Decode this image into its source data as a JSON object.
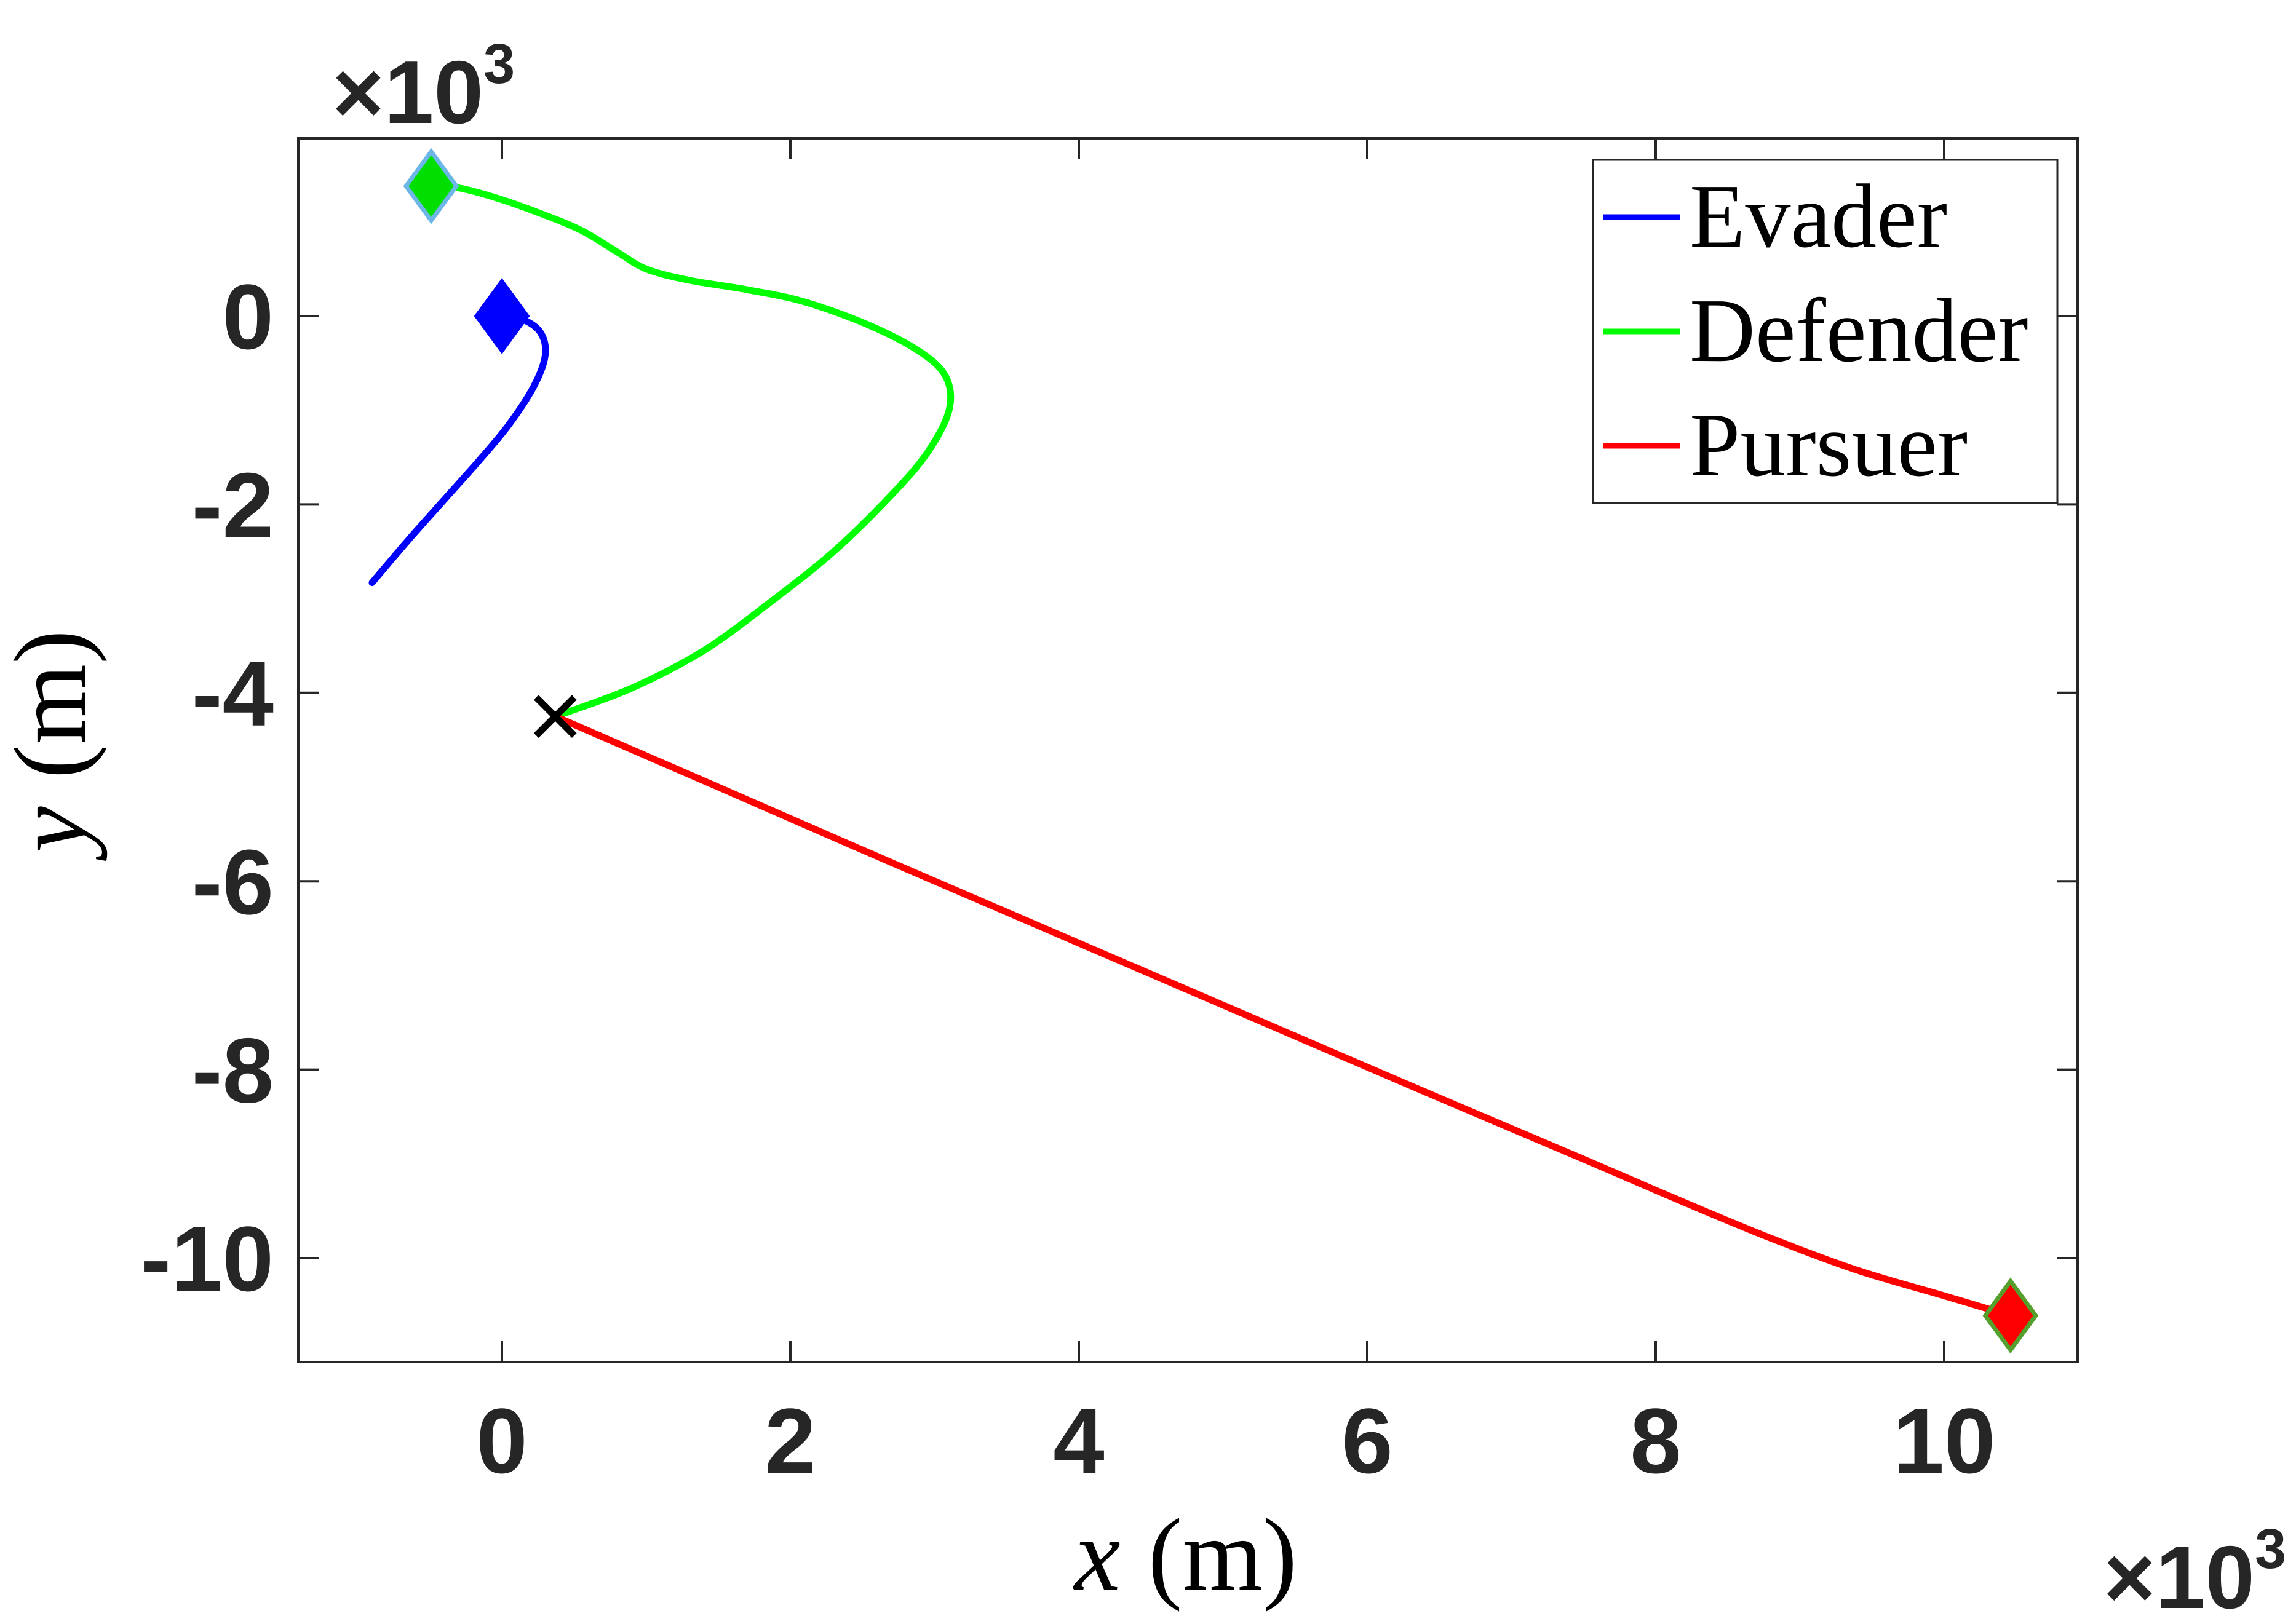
{
  "chart_data": {
    "type": "line",
    "title": "",
    "xlabel_var": "x",
    "xlabel_unit": "(m)",
    "ylabel_var": "y",
    "ylabel_unit": "(m)",
    "axis_multiplier_base": "×10",
    "axis_multiplier_exp": "3",
    "unit_scale_note": "axis values are in thousands of meters (×10³)",
    "xlim": [
      -1.41,
      10.93
    ],
    "ylim": [
      -11.1,
      1.89
    ],
    "grid": false,
    "x_ticks": {
      "values": [
        0,
        2,
        4,
        6,
        8,
        10
      ],
      "labels": [
        "0",
        "2",
        "4",
        "6",
        "8",
        "10"
      ]
    },
    "y_ticks": {
      "values": [
        0,
        -2,
        -4,
        -6,
        -8,
        -10
      ],
      "labels": [
        "0",
        "-2",
        "-4",
        "-6",
        "-8",
        "-10"
      ]
    },
    "legend": {
      "position": "northeast",
      "entries": [
        {
          "label": "Evader",
          "color": "#0000FF"
        },
        {
          "label": "Defender",
          "color": "#00FF00"
        },
        {
          "label": "Pursuer",
          "color": "#FF0000"
        }
      ]
    },
    "series": [
      {
        "name": "Evader",
        "color": "#0000FF",
        "points": [
          [
            0.0,
            0.0
          ],
          [
            0.15,
            -0.04
          ],
          [
            0.27,
            -0.18
          ],
          [
            0.3,
            -0.42
          ],
          [
            0.22,
            -0.75
          ],
          [
            0.05,
            -1.15
          ],
          [
            -0.15,
            -1.52
          ],
          [
            -0.4,
            -1.95
          ],
          [
            -0.65,
            -2.38
          ],
          [
            -0.9,
            -2.83
          ]
        ]
      },
      {
        "name": "Defender",
        "color": "#00FF00",
        "points": [
          [
            -0.49,
            1.38
          ],
          [
            -0.3,
            1.36
          ],
          [
            -0.05,
            1.26
          ],
          [
            0.25,
            1.1
          ],
          [
            0.55,
            0.91
          ],
          [
            0.8,
            0.68
          ],
          [
            1.0,
            0.5
          ],
          [
            1.3,
            0.38
          ],
          [
            1.7,
            0.28
          ],
          [
            2.1,
            0.15
          ],
          [
            2.55,
            -0.1
          ],
          [
            2.9,
            -0.38
          ],
          [
            3.08,
            -0.65
          ],
          [
            3.1,
            -1.0
          ],
          [
            2.95,
            -1.45
          ],
          [
            2.7,
            -1.9
          ],
          [
            2.3,
            -2.5
          ],
          [
            1.85,
            -3.05
          ],
          [
            1.4,
            -3.55
          ],
          [
            0.9,
            -3.95
          ],
          [
            0.37,
            -4.25
          ]
        ]
      },
      {
        "name": "Pursuer",
        "color": "#FF0000",
        "points": [
          [
            0.37,
            -4.25
          ],
          [
            1.5,
            -5.0
          ],
          [
            2.7,
            -5.8
          ],
          [
            3.9,
            -6.59
          ],
          [
            5.1,
            -7.38
          ],
          [
            6.3,
            -8.17
          ],
          [
            7.5,
            -8.95
          ],
          [
            8.2,
            -9.41
          ],
          [
            8.8,
            -9.79
          ],
          [
            9.4,
            -10.13
          ],
          [
            10.0,
            -10.4
          ],
          [
            10.46,
            -10.61
          ]
        ]
      }
    ],
    "markers": [
      {
        "name": "evader-start",
        "shape": "diamond",
        "x": 0.0,
        "y": 0.0,
        "fill": "#0000FF",
        "edge": "#0000FF"
      },
      {
        "name": "defender-start",
        "shape": "diamond",
        "x": -0.49,
        "y": 1.38,
        "fill": "#00DF00",
        "edge": "#6CB7E8"
      },
      {
        "name": "pursuer-start",
        "shape": "diamond",
        "x": 10.46,
        "y": -10.61,
        "fill": "#FF0000",
        "edge": "#55A02C"
      },
      {
        "name": "interception",
        "shape": "x",
        "x": 0.37,
        "y": -4.25,
        "fill": "#000000",
        "edge": "#000000"
      }
    ]
  }
}
